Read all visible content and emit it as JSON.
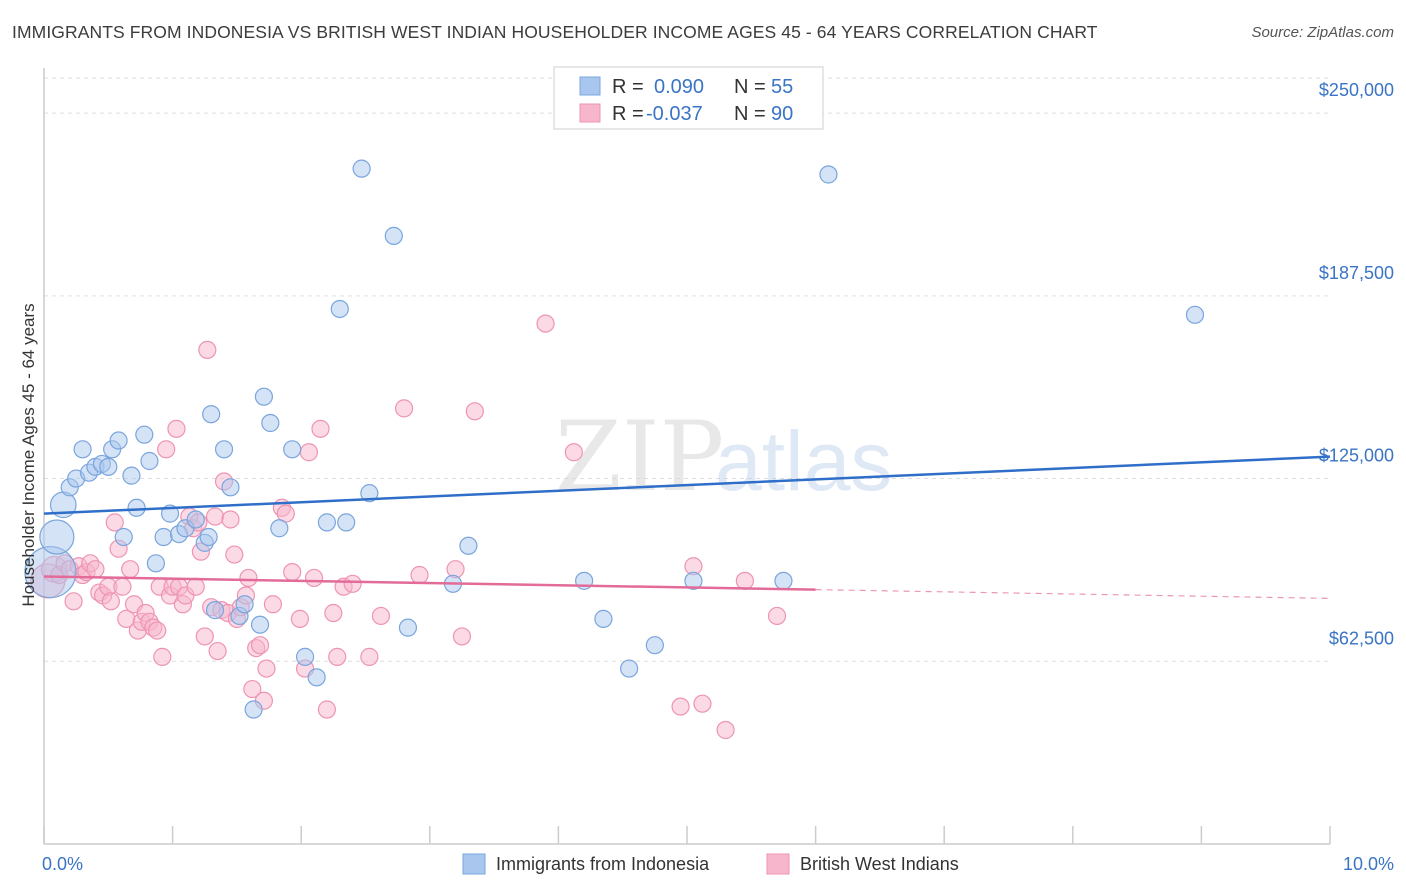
{
  "header": {
    "title": "IMMIGRANTS FROM INDONESIA VS BRITISH WEST INDIAN HOUSEHOLDER INCOME AGES 45 - 64 YEARS CORRELATION CHART",
    "source": "Source: ZipAtlas.com"
  },
  "watermark": {
    "zip": "ZIP",
    "atlas": "atlas"
  },
  "legend": {
    "r_label": "R =",
    "n_label": "N =",
    "rows": [
      {
        "r": "0.090",
        "n": "55"
      },
      {
        "r": "-0.037",
        "n": "90"
      }
    ]
  },
  "chart_data": {
    "type": "scatter",
    "xlabel": "",
    "ylabel": "Householder Income Ages 45 - 64 years",
    "xlim": [
      0,
      10
    ],
    "ylim": [
      0,
      262000
    ],
    "x_tick_labels": [
      "0.0%",
      "10.0%"
    ],
    "y_ticks": [
      {
        "value": 62500,
        "label": "$62,500"
      },
      {
        "value": 125000,
        "label": "$125,000"
      },
      {
        "value": 187500,
        "label": "$187,500"
      },
      {
        "value": 250000,
        "label": "$250,000"
      }
    ],
    "grid": true,
    "legend_position": "top-center",
    "colors": {
      "indonesia_fill": "#a9c7ee",
      "indonesia_stroke": "#7aa5dd",
      "indonesia_line": "#2f6fc9",
      "bwi_fill": "#f7b6cb",
      "bwi_stroke": "#ee94b2",
      "bwi_line": "#e26b98",
      "axis_text": "#3a74c4",
      "grid": "#dddddd"
    },
    "series": [
      {
        "name": "Immigrants from Indonesia",
        "trend": {
          "x": [
            0,
            10
          ],
          "y": [
            113000,
            132500
          ]
        },
        "points": [
          {
            "x": 0.05,
            "y": 93000,
            "s": 3
          },
          {
            "x": 0.1,
            "y": 105000,
            "s": 2
          },
          {
            "x": 0.15,
            "y": 116000,
            "s": 1.5
          },
          {
            "x": 0.2,
            "y": 122000
          },
          {
            "x": 0.25,
            "y": 125000
          },
          {
            "x": 0.3,
            "y": 135000
          },
          {
            "x": 0.35,
            "y": 127000
          },
          {
            "x": 0.4,
            "y": 129000
          },
          {
            "x": 0.45,
            "y": 130000
          },
          {
            "x": 0.5,
            "y": 129000
          },
          {
            "x": 0.53,
            "y": 135000
          },
          {
            "x": 0.58,
            "y": 138000
          },
          {
            "x": 0.62,
            "y": 105000
          },
          {
            "x": 0.68,
            "y": 126000
          },
          {
            "x": 0.72,
            "y": 115000
          },
          {
            "x": 0.78,
            "y": 140000
          },
          {
            "x": 0.82,
            "y": 131000
          },
          {
            "x": 0.87,
            "y": 96000
          },
          {
            "x": 0.93,
            "y": 105000
          },
          {
            "x": 0.98,
            "y": 113000
          },
          {
            "x": 1.05,
            "y": 106000
          },
          {
            "x": 1.1,
            "y": 108000
          },
          {
            "x": 1.18,
            "y": 111000
          },
          {
            "x": 1.25,
            "y": 103000
          },
          {
            "x": 1.28,
            "y": 105000
          },
          {
            "x": 1.3,
            "y": 147000
          },
          {
            "x": 1.33,
            "y": 80000
          },
          {
            "x": 1.4,
            "y": 135000
          },
          {
            "x": 1.45,
            "y": 122000
          },
          {
            "x": 1.52,
            "y": 78000
          },
          {
            "x": 1.56,
            "y": 82000
          },
          {
            "x": 1.63,
            "y": 46000
          },
          {
            "x": 1.68,
            "y": 75000
          },
          {
            "x": 1.71,
            "y": 153000
          },
          {
            "x": 1.76,
            "y": 144000
          },
          {
            "x": 1.83,
            "y": 108000
          },
          {
            "x": 1.93,
            "y": 135000
          },
          {
            "x": 2.03,
            "y": 64000
          },
          {
            "x": 2.12,
            "y": 57000
          },
          {
            "x": 2.2,
            "y": 110000
          },
          {
            "x": 2.3,
            "y": 183000
          },
          {
            "x": 2.35,
            "y": 110000
          },
          {
            "x": 2.47,
            "y": 231000
          },
          {
            "x": 2.53,
            "y": 120000
          },
          {
            "x": 2.72,
            "y": 208000
          },
          {
            "x": 2.83,
            "y": 74000
          },
          {
            "x": 3.18,
            "y": 89000
          },
          {
            "x": 3.3,
            "y": 102000
          },
          {
            "x": 4.2,
            "y": 90000
          },
          {
            "x": 4.35,
            "y": 77000
          },
          {
            "x": 4.55,
            "y": 60000
          },
          {
            "x": 4.75,
            "y": 68000
          },
          {
            "x": 5.05,
            "y": 90000
          },
          {
            "x": 5.75,
            "y": 90000
          },
          {
            "x": 6.1,
            "y": 229000
          },
          {
            "x": 8.95,
            "y": 181000
          }
        ]
      },
      {
        "name": "British West Indians",
        "trend": {
          "x": [
            0,
            6
          ],
          "y": [
            91500,
            87000
          ]
        },
        "trend_dashed": {
          "x": [
            6,
            10
          ],
          "y": [
            87000,
            84000
          ]
        },
        "points": [
          {
            "x": 0.03,
            "y": 90000,
            "s": 2
          },
          {
            "x": 0.08,
            "y": 94000,
            "s": 1.5
          },
          {
            "x": 0.12,
            "y": 92000
          },
          {
            "x": 0.16,
            "y": 96000
          },
          {
            "x": 0.2,
            "y": 94000
          },
          {
            "x": 0.23,
            "y": 83000
          },
          {
            "x": 0.27,
            "y": 95000
          },
          {
            "x": 0.3,
            "y": 92000
          },
          {
            "x": 0.33,
            "y": 93000
          },
          {
            "x": 0.36,
            "y": 96000
          },
          {
            "x": 0.4,
            "y": 94000
          },
          {
            "x": 0.43,
            "y": 86000
          },
          {
            "x": 0.46,
            "y": 85000
          },
          {
            "x": 0.5,
            "y": 88000
          },
          {
            "x": 0.52,
            "y": 83000
          },
          {
            "x": 0.55,
            "y": 110000
          },
          {
            "x": 0.58,
            "y": 101000
          },
          {
            "x": 0.61,
            "y": 88000
          },
          {
            "x": 0.64,
            "y": 77000
          },
          {
            "x": 0.67,
            "y": 94000
          },
          {
            "x": 0.7,
            "y": 82000
          },
          {
            "x": 0.73,
            "y": 73000
          },
          {
            "x": 0.76,
            "y": 76000
          },
          {
            "x": 0.79,
            "y": 79000
          },
          {
            "x": 0.82,
            "y": 76000
          },
          {
            "x": 0.85,
            "y": 74000
          },
          {
            "x": 0.88,
            "y": 73000
          },
          {
            "x": 0.9,
            "y": 88000
          },
          {
            "x": 0.92,
            "y": 64000
          },
          {
            "x": 0.95,
            "y": 135000
          },
          {
            "x": 0.98,
            "y": 85000
          },
          {
            "x": 1.0,
            "y": 88000
          },
          {
            "x": 1.03,
            "y": 142000
          },
          {
            "x": 1.05,
            "y": 88000
          },
          {
            "x": 1.08,
            "y": 82000
          },
          {
            "x": 1.1,
            "y": 85000
          },
          {
            "x": 1.13,
            "y": 112000
          },
          {
            "x": 1.16,
            "y": 108000
          },
          {
            "x": 1.18,
            "y": 88000
          },
          {
            "x": 1.2,
            "y": 110000
          },
          {
            "x": 1.22,
            "y": 100000
          },
          {
            "x": 1.25,
            "y": 71000
          },
          {
            "x": 1.27,
            "y": 169000
          },
          {
            "x": 1.3,
            "y": 81000
          },
          {
            "x": 1.33,
            "y": 112000
          },
          {
            "x": 1.35,
            "y": 66000
          },
          {
            "x": 1.38,
            "y": 80000
          },
          {
            "x": 1.4,
            "y": 124000
          },
          {
            "x": 1.43,
            "y": 79000
          },
          {
            "x": 1.45,
            "y": 111000
          },
          {
            "x": 1.48,
            "y": 99000
          },
          {
            "x": 1.5,
            "y": 77000
          },
          {
            "x": 1.53,
            "y": 81000
          },
          {
            "x": 1.57,
            "y": 85000
          },
          {
            "x": 1.59,
            "y": 91000
          },
          {
            "x": 1.62,
            "y": 53000
          },
          {
            "x": 1.65,
            "y": 67000
          },
          {
            "x": 1.68,
            "y": 68000
          },
          {
            "x": 1.71,
            "y": 49000
          },
          {
            "x": 1.73,
            "y": 60000
          },
          {
            "x": 1.78,
            "y": 82000
          },
          {
            "x": 1.85,
            "y": 115000
          },
          {
            "x": 1.88,
            "y": 113000
          },
          {
            "x": 1.93,
            "y": 93000
          },
          {
            "x": 1.99,
            "y": 77000
          },
          {
            "x": 2.03,
            "y": 60000
          },
          {
            "x": 2.06,
            "y": 134000
          },
          {
            "x": 2.1,
            "y": 91000
          },
          {
            "x": 2.15,
            "y": 142000
          },
          {
            "x": 2.2,
            "y": 46000
          },
          {
            "x": 2.25,
            "y": 79000
          },
          {
            "x": 2.28,
            "y": 64000
          },
          {
            "x": 2.33,
            "y": 88000
          },
          {
            "x": 2.4,
            "y": 89000
          },
          {
            "x": 2.53,
            "y": 64000
          },
          {
            "x": 2.62,
            "y": 78000
          },
          {
            "x": 2.8,
            "y": 149000
          },
          {
            "x": 2.92,
            "y": 92000
          },
          {
            "x": 3.2,
            "y": 94000
          },
          {
            "x": 3.25,
            "y": 71000
          },
          {
            "x": 3.35,
            "y": 148000
          },
          {
            "x": 3.9,
            "y": 178000
          },
          {
            "x": 4.12,
            "y": 134000
          },
          {
            "x": 4.95,
            "y": 47000
          },
          {
            "x": 5.05,
            "y": 95000
          },
          {
            "x": 5.12,
            "y": 48000
          },
          {
            "x": 5.3,
            "y": 39000
          },
          {
            "x": 5.45,
            "y": 90000
          },
          {
            "x": 5.7,
            "y": 78000
          }
        ]
      }
    ]
  },
  "bottom_legend": [
    {
      "label": "Immigrants from Indonesia"
    },
    {
      "label": "British West Indians"
    }
  ]
}
